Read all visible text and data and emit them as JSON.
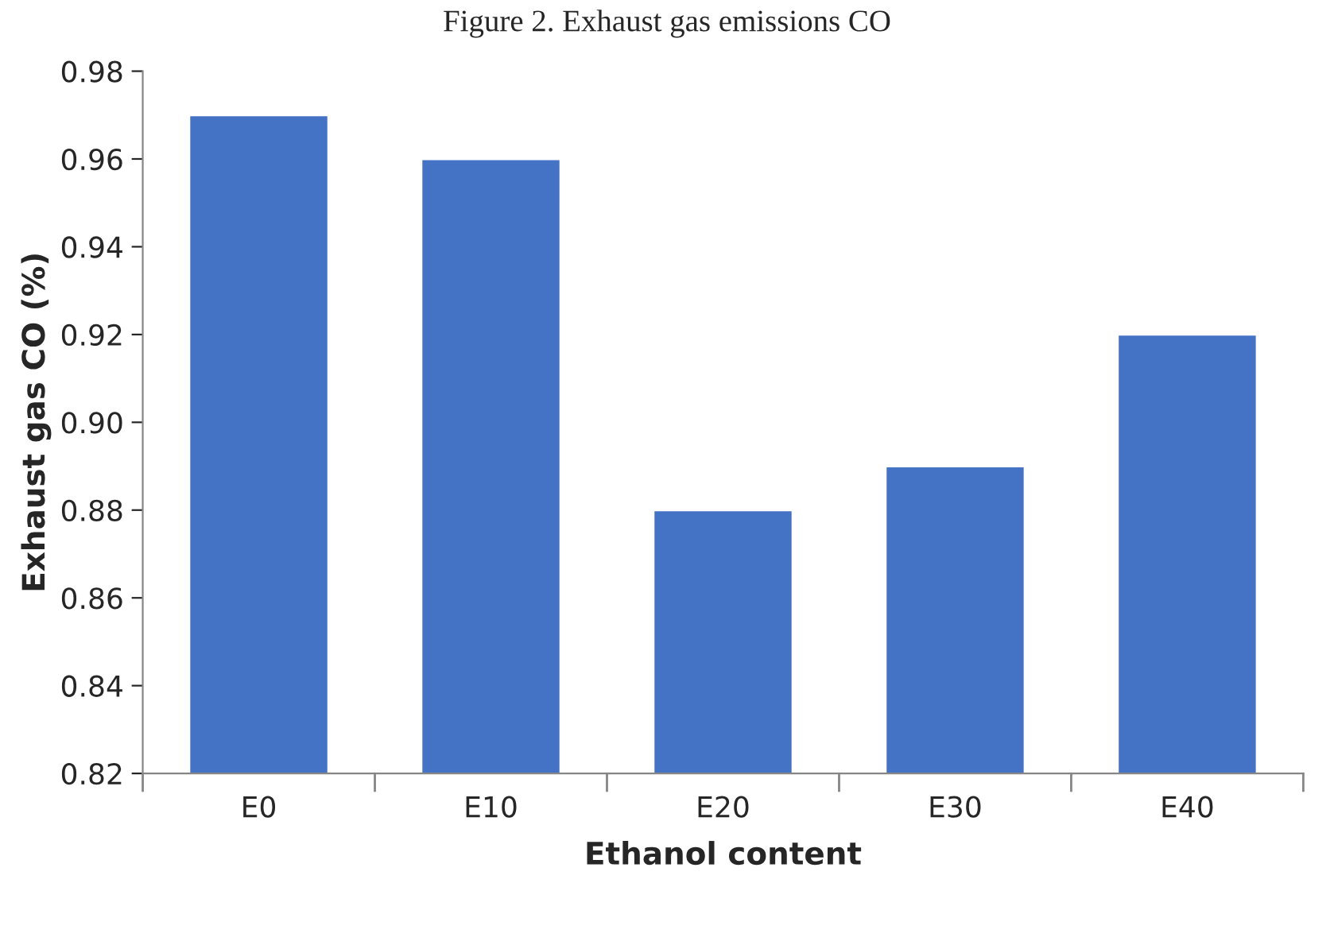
{
  "chart_data": {
    "type": "bar",
    "title": "Figure 2. Exhaust gas emissions CO",
    "xlabel": "Ethanol content",
    "ylabel": "Exhaust gas CO (%)",
    "categories": [
      "E0",
      "E10",
      "E20",
      "E30",
      "E40"
    ],
    "values": [
      0.97,
      0.96,
      0.88,
      0.89,
      0.92
    ],
    "color": "#4472c4",
    "ylim": [
      0.82,
      0.98
    ],
    "yticks": [
      {
        "value": 0.82,
        "label": "0.82"
      },
      {
        "value": 0.84,
        "label": "0.84"
      },
      {
        "value": 0.86,
        "label": "0.86"
      },
      {
        "value": 0.88,
        "label": "0.88"
      },
      {
        "value": 0.9,
        "label": "0.90"
      },
      {
        "value": 0.92,
        "label": "0.92"
      },
      {
        "value": 0.94,
        "label": "0.94"
      },
      {
        "value": 0.96,
        "label": "0.96"
      },
      {
        "value": 0.98,
        "label": "0.98"
      }
    ],
    "grid": false,
    "legend": false
  }
}
